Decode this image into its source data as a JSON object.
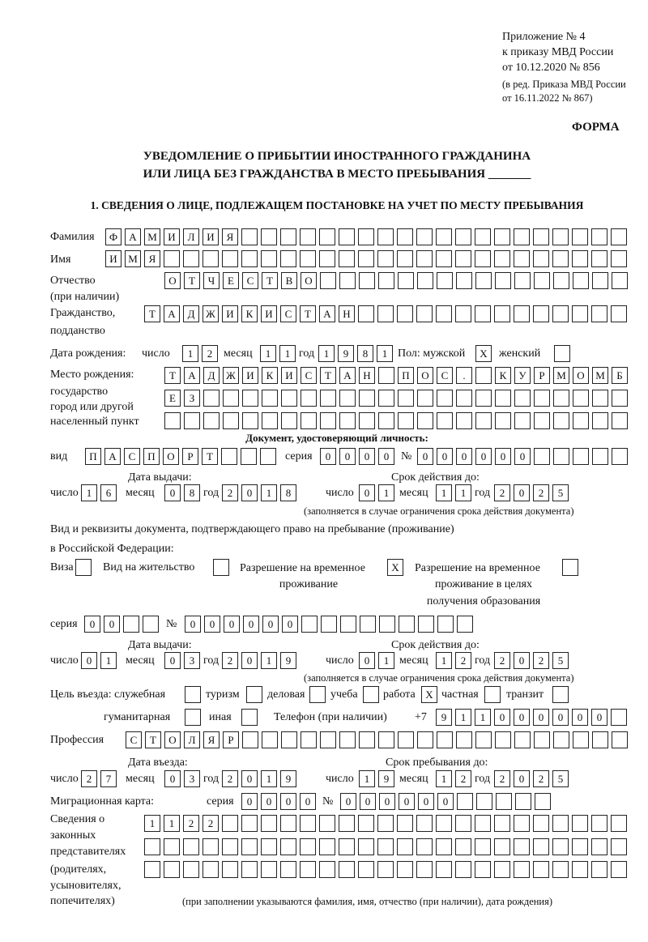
{
  "header": {
    "appendix_line1": "Приложение № 4",
    "appendix_line2": "к приказу МВД России",
    "appendix_line3": "от 10.12.2020 № 856",
    "edition_line1": "(в ред. Приказа МВД России",
    "edition_line2": "от 16.11.2022 № 867)",
    "form_label": "ФОРМА",
    "title_line1": "УВЕДОМЛЕНИЕ О ПРИБЫТИИ ИНОСТРАННОГО ГРАЖДАНИНА",
    "title_line2": "ИЛИ ЛИЦА БЕЗ ГРАЖДАНСТВА В МЕСТО ПРЕБЫВАНИЯ _______",
    "section1": "1. СВЕДЕНИЯ О ЛИЦЕ, ПОДЛЕЖАЩЕМ ПОСТАНОВКЕ НА УЧЕТ ПО МЕСТУ ПРЕБЫВАНИЯ"
  },
  "labels": {
    "surname": "Фамилия",
    "name": "Имя",
    "patronymic": "Отчество",
    "patronymic_note": "(при наличии)",
    "citizenship1": "Гражданство,",
    "citizenship2": "подданство",
    "birth_date": "Дата рождения:",
    "day": "число",
    "month": "месяц",
    "year": "год",
    "sex_male": "Пол: мужской",
    "sex_female": "женский",
    "birth_place1": "Место рождения:",
    "birth_place2": "государство",
    "birth_place3": "город или другой",
    "birth_place4": "населенный пункт",
    "id_doc": "Документ, удостоверяющий личность:",
    "kind": "вид",
    "series": "серия",
    "number": "№",
    "issue_date": "Дата выдачи:",
    "valid_until": "Срок действия до:",
    "validity_note": "(заполняется в случае ограничения срока действия документа)",
    "stay_doc1": "Вид и реквизиты документа, подтверждающего право на пребывание (проживание)",
    "stay_doc2": "в Российской Федерации:",
    "visa": "Виза",
    "residence": "Вид на жительство",
    "trp1": "Разрешение на временное",
    "trp2": "проживание",
    "trp_edu1": "Разрешение на временное",
    "trp_edu2": "проживание в целях",
    "trp_edu3": "получения образования",
    "purpose": "Цель въезда: служебная",
    "tourism": "туризм",
    "business": "деловая",
    "study": "учеба",
    "work": "работа",
    "private": "частная",
    "transit": "транзит",
    "humanitarian": "гуманитарная",
    "other": "иная",
    "phone": "Телефон (при наличии)",
    "phone_prefix": "+7",
    "profession": "Профессия",
    "entry_date": "Дата въезда:",
    "stay_until": "Срок пребывания до:",
    "migration_card": "Миграционная карта:",
    "reps1": "Сведения о",
    "reps2": "законных",
    "reps3": "представителях",
    "reps4": "(родителях,",
    "reps5": "усыновителях,",
    "reps6": "попечителях)",
    "reps_note": "(при заполнении указываются фамилия, имя, отчество (при наличии), дата рождения)"
  },
  "fields": {
    "surname": [
      "Ф",
      "А",
      "М",
      "И",
      "Л",
      "И",
      "Я",
      "",
      "",
      "",
      "",
      "",
      "",
      "",
      "",
      "",
      "",
      "",
      "",
      "",
      "",
      "",
      "",
      "",
      "",
      "",
      ""
    ],
    "name": [
      "И",
      "М",
      "Я",
      "",
      "",
      "",
      "",
      "",
      "",
      "",
      "",
      "",
      "",
      "",
      "",
      "",
      "",
      "",
      "",
      "",
      "",
      "",
      "",
      "",
      "",
      "",
      ""
    ],
    "patronymic": [
      "О",
      "Т",
      "Ч",
      "Е",
      "С",
      "Т",
      "В",
      "О",
      "",
      "",
      "",
      "",
      "",
      "",
      "",
      "",
      "",
      "",
      "",
      "",
      "",
      "",
      "",
      ""
    ],
    "citizenship": [
      "Т",
      "А",
      "Д",
      "Ж",
      "И",
      "К",
      "И",
      "С",
      "Т",
      "А",
      "Н",
      "",
      "",
      "",
      "",
      "",
      "",
      "",
      "",
      "",
      "",
      "",
      "",
      "",
      ""
    ],
    "birth_day": [
      "1",
      "2"
    ],
    "birth_month": [
      "1",
      "1"
    ],
    "birth_year": [
      "1",
      "9",
      "8",
      "1"
    ],
    "sex_male": [
      "X"
    ],
    "sex_female": [
      ""
    ],
    "birth_place_1": [
      "Т",
      "А",
      "Д",
      "Ж",
      "И",
      "К",
      "И",
      "С",
      "Т",
      "А",
      "Н",
      "",
      "П",
      "О",
      "С",
      ".",
      "",
      "К",
      "У",
      "Р",
      "М",
      "О",
      "М",
      "Б"
    ],
    "birth_place_2": [
      "Е",
      "З",
      "",
      "",
      "",
      "",
      "",
      "",
      "",
      "",
      "",
      "",
      "",
      "",
      "",
      "",
      "",
      "",
      "",
      "",
      "",
      "",
      "",
      ""
    ],
    "birth_place_3": [
      "",
      "",
      "",
      "",
      "",
      "",
      "",
      "",
      "",
      "",
      "",
      "",
      "",
      "",
      "",
      "",
      "",
      "",
      "",
      "",
      "",
      "",
      "",
      ""
    ],
    "id_kind": [
      "П",
      "А",
      "С",
      "П",
      "О",
      "Р",
      "Т",
      "",
      "",
      ""
    ],
    "id_series": [
      "0",
      "0",
      "0",
      "0"
    ],
    "id_number": [
      "0",
      "0",
      "0",
      "0",
      "0",
      "0",
      "",
      "",
      "",
      "",
      ""
    ],
    "id_issue_day": [
      "1",
      "6"
    ],
    "id_issue_month": [
      "0",
      "8"
    ],
    "id_issue_year": [
      "2",
      "0",
      "1",
      "8"
    ],
    "id_valid_day": [
      "0",
      "1"
    ],
    "id_valid_month": [
      "1",
      "1"
    ],
    "id_valid_year": [
      "2",
      "0",
      "2",
      "5"
    ],
    "visa": [
      ""
    ],
    "residence": [
      ""
    ],
    "trp": [
      "X"
    ],
    "trp_edu": [
      ""
    ],
    "stay_series": [
      "0",
      "0",
      "",
      ""
    ],
    "stay_number": [
      "0",
      "0",
      "0",
      "0",
      "0",
      "0",
      "",
      "",
      "",
      "",
      "",
      "",
      "",
      "",
      ""
    ],
    "stay_issue_day": [
      "0",
      "1"
    ],
    "stay_issue_month": [
      "0",
      "3"
    ],
    "stay_issue_year": [
      "2",
      "0",
      "1",
      "9"
    ],
    "stay_valid_day": [
      "0",
      "1"
    ],
    "stay_valid_month": [
      "1",
      "2"
    ],
    "stay_valid_year": [
      "2",
      "0",
      "2",
      "5"
    ],
    "p_official": [
      ""
    ],
    "p_tourism": [
      ""
    ],
    "p_business": [
      ""
    ],
    "p_study": [
      ""
    ],
    "p_work": [
      "X"
    ],
    "p_private": [
      ""
    ],
    "p_transit": [
      ""
    ],
    "p_humanitarian": [
      ""
    ],
    "p_other": [
      ""
    ],
    "phone": [
      "9",
      "1",
      "1",
      "0",
      "0",
      "0",
      "0",
      "0",
      "0",
      ""
    ],
    "profession": [
      "С",
      "Т",
      "О",
      "Л",
      "Я",
      "Р",
      "",
      "",
      "",
      "",
      "",
      "",
      "",
      "",
      "",
      "",
      "",
      "",
      "",
      "",
      "",
      "",
      "",
      "",
      "",
      ""
    ],
    "entry_day": [
      "2",
      "7"
    ],
    "entry_month": [
      "0",
      "3"
    ],
    "entry_year": [
      "2",
      "0",
      "1",
      "9"
    ],
    "stay_day": [
      "1",
      "9"
    ],
    "stay_month": [
      "1",
      "2"
    ],
    "stay_year": [
      "2",
      "0",
      "2",
      "5"
    ],
    "mc_series": [
      "0",
      "0",
      "0",
      "0"
    ],
    "mc_number": [
      "0",
      "0",
      "0",
      "0",
      "0",
      "0",
      "",
      "",
      "",
      "",
      ""
    ],
    "reps_1": [
      "1",
      "1",
      "2",
      "2",
      "",
      "",
      "",
      "",
      "",
      "",
      "",
      "",
      "",
      "",
      "",
      "",
      "",
      "",
      "",
      "",
      "",
      "",
      "",
      "",
      ""
    ],
    "reps_2": [
      "",
      "",
      "",
      "",
      "",
      "",
      "",
      "",
      "",
      "",
      "",
      "",
      "",
      "",
      "",
      "",
      "",
      "",
      "",
      "",
      "",
      "",
      "",
      "",
      ""
    ],
    "reps_3": [
      "",
      "",
      "",
      "",
      "",
      "",
      "",
      "",
      "",
      "",
      "",
      "",
      "",
      "",
      "",
      "",
      "",
      "",
      "",
      "",
      "",
      "",
      "",
      "",
      ""
    ]
  }
}
